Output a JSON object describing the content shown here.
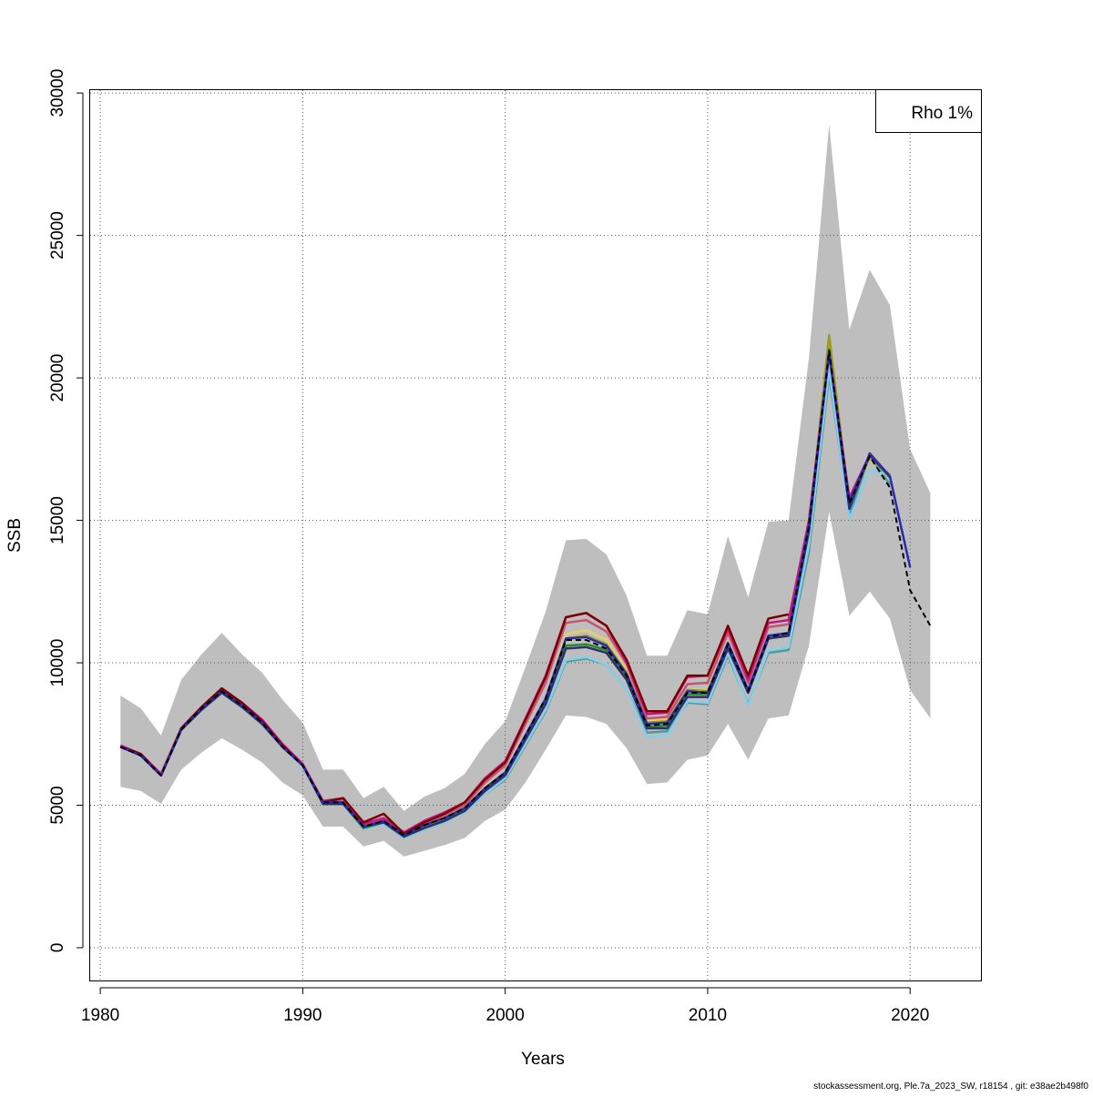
{
  "chart_data": {
    "type": "line",
    "title": "",
    "xlabel": "Years",
    "ylabel": "SSB",
    "xlim": [
      1979.5,
      2023.5
    ],
    "ylim": [
      -1150,
      30100
    ],
    "x_ticks": [
      1980,
      1990,
      2000,
      2010,
      2020
    ],
    "y_ticks": [
      0,
      5000,
      10000,
      15000,
      20000,
      25000,
      30000
    ],
    "grid": true,
    "legend": {
      "position": "top-right",
      "text": "Rho 1%"
    },
    "footer": "stockassessment.org, Ple.7a_2023_SW, r18154 , git: e38ae2b498f0",
    "confidence_band": {
      "color": "#bebebe",
      "x": [
        1981,
        1982,
        1983,
        1984,
        1985,
        1986,
        1987,
        1988,
        1989,
        1990,
        1991,
        1992,
        1993,
        1994,
        1995,
        1996,
        1997,
        1998,
        1999,
        2000,
        2001,
        2002,
        2003,
        2004,
        2005,
        2006,
        2007,
        2008,
        2009,
        2010,
        2011,
        2012,
        2013,
        2014,
        2015,
        2016,
        2017,
        2018,
        2019,
        2020,
        2021
      ],
      "upper": [
        8850,
        8400,
        7450,
        9400,
        10300,
        11050,
        10300,
        9650,
        8700,
        7900,
        6250,
        6250,
        5250,
        5650,
        4800,
        5300,
        5600,
        6100,
        7150,
        7950,
        9850,
        11800,
        14300,
        14350,
        13800,
        12350,
        10250,
        10250,
        11850,
        11700,
        14450,
        12300,
        14950,
        15000,
        20700,
        28900,
        21700,
        23800,
        22550,
        17500,
        15950
      ],
      "lower": [
        5650,
        5500,
        5050,
        6250,
        6850,
        7350,
        6950,
        6500,
        5800,
        5350,
        4250,
        4250,
        3550,
        3750,
        3200,
        3400,
        3600,
        3850,
        4450,
        4850,
        5800,
        6950,
        8150,
        8100,
        7850,
        7000,
        5750,
        5800,
        6600,
        6750,
        7850,
        6600,
        8050,
        8150,
        10600,
        15300,
        11650,
        12500,
        11550,
        9050,
        8050
      ]
    },
    "series": [
      {
        "color": "#4d9c9c",
        "x": [
          1981,
          1982,
          1983,
          1984,
          1985,
          1986,
          1987,
          1988,
          1989,
          1990,
          1991,
          1992,
          1993,
          1994,
          1995,
          1996,
          1997,
          1998,
          1999,
          2000,
          2001,
          2002,
          2003,
          2004,
          2005,
          2006,
          2007,
          2008,
          2009,
          2010,
          2011,
          2012,
          2013,
          2014,
          2015,
          2016,
          2017,
          2018,
          2019
        ],
        "values": [
          7050,
          6750,
          6050,
          7650,
          8350,
          8950,
          8450,
          7850,
          7050,
          6350,
          5050,
          5050,
          4150,
          4350,
          3850,
          4150,
          4400,
          4750,
          5400,
          5900,
          7100,
          8300,
          10050,
          10150,
          9950,
          9050,
          7550,
          7600,
          8600,
          8550,
          10250,
          8550,
          10350,
          10450,
          13900,
          20100,
          15150,
          17300,
          16250
        ]
      },
      {
        "color": "#87ceeb",
        "x": [
          1981,
          1982,
          1983,
          1984,
          1985,
          1986,
          1987,
          1988,
          1989,
          1990,
          1991,
          1992,
          1993,
          1994,
          1995,
          1996,
          1997,
          1998,
          1999,
          2000,
          2001,
          2002,
          2003,
          2004,
          2005,
          2006,
          2007,
          2008,
          2009,
          2010,
          2011,
          2012,
          2013,
          2014,
          2015,
          2016,
          2017,
          2018,
          2019
        ],
        "values": [
          7050,
          6750,
          6050,
          7650,
          8350,
          8950,
          8450,
          7850,
          7050,
          6350,
          5050,
          5050,
          4150,
          4350,
          3850,
          4150,
          4400,
          4750,
          5400,
          5950,
          7150,
          8350,
          10100,
          10200,
          9950,
          9050,
          7400,
          7450,
          8650,
          8600,
          10350,
          8500,
          10450,
          10550,
          14150,
          20300,
          15050,
          16750,
          16600
        ]
      },
      {
        "color": "#e6d066",
        "x": [
          1981,
          1982,
          1983,
          1984,
          1985,
          1986,
          1987,
          1988,
          1989,
          1990,
          1991,
          1992,
          1993,
          1994,
          1995,
          1996,
          1997,
          1998,
          1999,
          2000,
          2001,
          2002,
          2003,
          2004,
          2005,
          2006,
          2007,
          2008,
          2009,
          2010,
          2011,
          2012,
          2013,
          2014,
          2015,
          2016,
          2017,
          2018,
          2019
        ],
        "values": [
          7050,
          6750,
          6050,
          7650,
          8400,
          9000,
          8500,
          7900,
          7050,
          6400,
          5100,
          5100,
          4250,
          4450,
          3950,
          4300,
          4550,
          4900,
          5650,
          6150,
          7450,
          8750,
          11000,
          11150,
          10800,
          9750,
          7950,
          8000,
          9050,
          9050,
          10750,
          9050,
          10950,
          11050,
          14800,
          21300,
          15750,
          17300,
          16500
        ]
      },
      {
        "color": "#9c9c1a",
        "x": [
          1981,
          1982,
          1983,
          1984,
          1985,
          1986,
          1987,
          1988,
          1989,
          1990,
          1991,
          1992,
          1993,
          1994,
          1995,
          1996,
          1997,
          1998,
          1999,
          2000,
          2001,
          2002,
          2003,
          2004,
          2005,
          2006,
          2007,
          2008,
          2009,
          2010,
          2011,
          2012,
          2013,
          2014,
          2015,
          2016,
          2017,
          2018,
          2019
        ],
        "values": [
          7050,
          6750,
          6050,
          7650,
          8350,
          8950,
          8450,
          7850,
          7050,
          6400,
          5050,
          5100,
          4200,
          4400,
          3900,
          4250,
          4500,
          4850,
          5550,
          6100,
          7400,
          8700,
          10850,
          10950,
          10650,
          9650,
          7900,
          7950,
          9050,
          9000,
          10700,
          8950,
          10900,
          11000,
          14700,
          21500,
          15600,
          17200,
          16600
        ]
      },
      {
        "color": "#228b22",
        "x": [
          1981,
          1982,
          1983,
          1984,
          1985,
          1986,
          1987,
          1988,
          1989,
          1990,
          1991,
          1992,
          1993,
          1994,
          1995,
          1996,
          1997,
          1998,
          1999,
          2000,
          2001,
          2002,
          2003,
          2004,
          2005,
          2006,
          2007,
          2008,
          2009,
          2010,
          2011,
          2012,
          2013,
          2014,
          2015,
          2016,
          2017,
          2018,
          2019
        ],
        "values": [
          7050,
          6750,
          6050,
          7650,
          8350,
          8950,
          8450,
          7850,
          7050,
          6400,
          5050,
          5050,
          4200,
          4400,
          3900,
          4200,
          4450,
          4800,
          5500,
          6050,
          7350,
          8600,
          10600,
          10650,
          10450,
          9500,
          7750,
          7800,
          8900,
          8900,
          10600,
          8950,
          10850,
          10950,
          14600,
          21000,
          15500,
          17300,
          16500
        ]
      },
      {
        "color": "#2f2f6f",
        "x": [
          1981,
          1982,
          1983,
          1984,
          1985,
          1986,
          1987,
          1988,
          1989,
          1990,
          1991,
          1992,
          1993,
          1994,
          1995,
          1996,
          1997,
          1998,
          1999,
          2000,
          2001,
          2002,
          2003,
          2004,
          2005,
          2006,
          2007,
          2008,
          2009,
          2010,
          2011,
          2012,
          2013,
          2014,
          2015,
          2016,
          2017,
          2018,
          2019
        ],
        "values": [
          7050,
          6750,
          6050,
          7650,
          8350,
          8950,
          8450,
          7850,
          7050,
          6400,
          5050,
          5050,
          4250,
          4400,
          3900,
          4200,
          4450,
          4800,
          5500,
          6050,
          7300,
          8550,
          10500,
          10550,
          10350,
          9400,
          7700,
          7700,
          8800,
          8800,
          10500,
          8950,
          10850,
          10950,
          14650,
          20950,
          15400,
          17350,
          16550
        ]
      },
      {
        "color": "#c7546e",
        "x": [
          1981,
          1982,
          1983,
          1984,
          1985,
          1986,
          1987,
          1988,
          1989,
          1990,
          1991,
          1992,
          1993,
          1994,
          1995,
          1996,
          1997,
          1998,
          1999,
          2000,
          2001,
          2002,
          2003,
          2004,
          2005,
          2006,
          2007,
          2008,
          2009,
          2010,
          2011,
          2012,
          2013,
          2014,
          2015,
          2016,
          2017,
          2018,
          2019
        ],
        "values": [
          7050,
          6750,
          6050,
          7650,
          8400,
          9050,
          8550,
          7950,
          7100,
          6400,
          5100,
          5200,
          4300,
          4500,
          4000,
          4350,
          4650,
          5000,
          5800,
          6400,
          7850,
          9300,
          11400,
          11500,
          11100,
          9950,
          8050,
          8100,
          9250,
          9300,
          11050,
          9300,
          11250,
          11350,
          14950,
          20900,
          15700,
          17300,
          16550
        ]
      },
      {
        "color": "#c71585",
        "x": [
          1981,
          1982,
          1983,
          1984,
          1985,
          1986,
          1987,
          1988,
          1989,
          1990,
          1991,
          1992,
          1993,
          1994,
          1995,
          1996,
          1997,
          1998,
          1999,
          2000,
          2001,
          2002,
          2003,
          2004,
          2005,
          2006,
          2007,
          2008,
          2009,
          2010,
          2011,
          2012,
          2013,
          2014,
          2015,
          2016,
          2017,
          2018,
          2019
        ],
        "values": [
          7100,
          6800,
          6100,
          7700,
          8450,
          9100,
          8600,
          8000,
          7150,
          6450,
          5150,
          5250,
          4350,
          4550,
          4050,
          4450,
          4750,
          5100,
          5950,
          6550,
          8050,
          9550,
          11600,
          11750,
          11300,
          10000,
          8200,
          8250,
          9500,
          9550,
          11200,
          9400,
          11400,
          11500,
          15000,
          20850,
          15800,
          17300,
          16550
        ]
      },
      {
        "color": "#7a0000",
        "x": [
          1981,
          1982,
          1983,
          1984,
          1985,
          1986,
          1987,
          1988,
          1989,
          1990,
          1991,
          1992,
          1993,
          1994,
          1995,
          1996,
          1997,
          1998,
          1999,
          2000,
          2001,
          2002,
          2003,
          2004,
          2005,
          2006,
          2007,
          2008,
          2009,
          2010,
          2011,
          2012,
          2013,
          2014
        ],
        "values": [
          7050,
          6800,
          6050,
          7700,
          8450,
          9100,
          8600,
          7950,
          7100,
          6400,
          5100,
          5250,
          4400,
          4700,
          4000,
          4400,
          4700,
          5100,
          5900,
          6500,
          8000,
          9500,
          11600,
          11750,
          11300,
          10100,
          8300,
          8300,
          9550,
          9550,
          11300,
          9550,
          11550,
          11700
        ]
      },
      {
        "color": "#2a2ab0",
        "x": [
          1981,
          1982,
          1983,
          1984,
          1985,
          1986,
          1987,
          1988,
          1989,
          1990,
          1991,
          1992,
          1993,
          1994,
          1995,
          1996,
          1997,
          1998,
          1999,
          2000,
          2001,
          2002,
          2003,
          2004,
          2005,
          2006,
          2007,
          2008,
          2009,
          2010,
          2011,
          2012,
          2013,
          2014,
          2015,
          2016,
          2017,
          2018,
          2019,
          2020
        ],
        "values": [
          7050,
          6750,
          6050,
          7650,
          8400,
          9000,
          8500,
          7900,
          7050,
          6400,
          5100,
          5100,
          4250,
          4450,
          3950,
          4300,
          4550,
          4900,
          5600,
          6150,
          7450,
          8750,
          10850,
          10900,
          10600,
          9600,
          7850,
          7900,
          9000,
          8950,
          10700,
          9050,
          10950,
          11050,
          14800,
          20850,
          15650,
          17300,
          16550,
          13350
        ]
      },
      {
        "color": "#000000",
        "dashed": true,
        "x": [
          1981,
          1982,
          1983,
          1984,
          1985,
          1986,
          1987,
          1988,
          1989,
          1990,
          1991,
          1992,
          1993,
          1994,
          1995,
          1996,
          1997,
          1998,
          1999,
          2000,
          2001,
          2002,
          2003,
          2004,
          2005,
          2006,
          2007,
          2008,
          2009,
          2010,
          2011,
          2012,
          2013,
          2014,
          2015,
          2016,
          2017,
          2018,
          2019,
          2020,
          2021
        ],
        "values": [
          7050,
          6750,
          6050,
          7650,
          8400,
          9000,
          8500,
          7900,
          7050,
          6400,
          5100,
          5100,
          4250,
          4450,
          3950,
          4300,
          4550,
          4900,
          5600,
          6150,
          7450,
          8750,
          10800,
          10800,
          10500,
          9550,
          7800,
          7850,
          8950,
          8950,
          10650,
          9000,
          10900,
          11050,
          14800,
          20950,
          15600,
          17250,
          16150,
          12550,
          11300
        ]
      }
    ]
  }
}
